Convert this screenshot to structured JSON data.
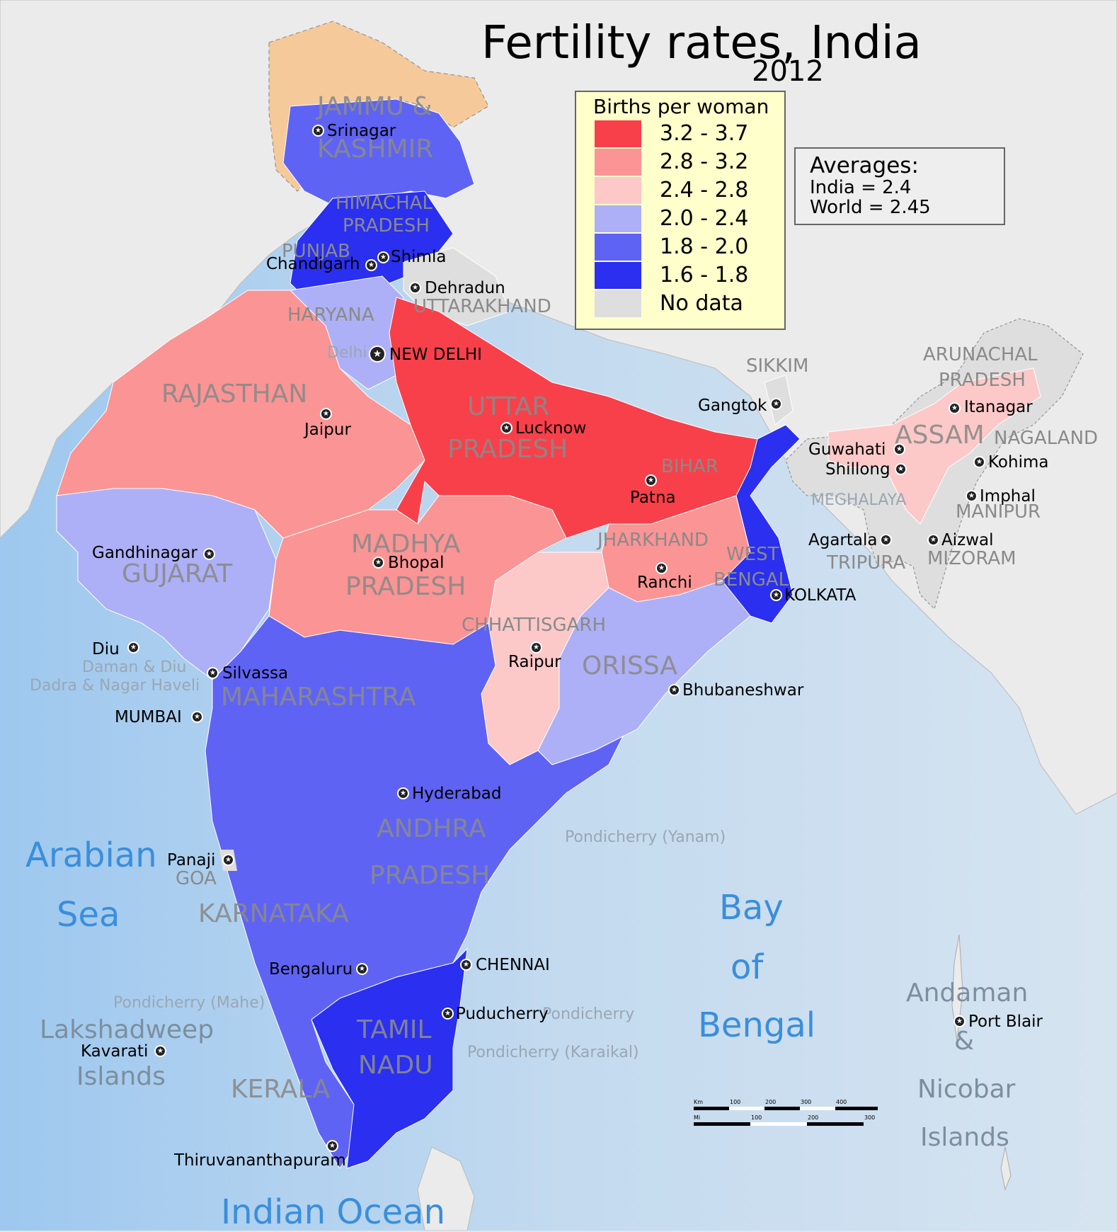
{
  "title": "Fertility rates, India",
  "subtitle": "2012",
  "legend": {
    "title": "Births per woman",
    "items": [
      {
        "label": "3.2 - 3.7",
        "color": "#f8404a"
      },
      {
        "label": "2.8 - 3.2",
        "color": "#fb9494"
      },
      {
        "label": "2.4 - 2.8",
        "color": "#fdc8c8"
      },
      {
        "label": "2.0 - 2.4",
        "color": "#adb0f6"
      },
      {
        "label": "1.8 - 2.0",
        "color": "#5f63f4"
      },
      {
        "label": "1.6 - 1.8",
        "color": "#2a2ff0"
      },
      {
        "label": "No data",
        "color": "#dedede"
      }
    ]
  },
  "averages": {
    "title": "Averages:",
    "india": "India = 2.4",
    "world": "World = 2.45"
  },
  "states": {
    "jammu": "JAMMU &",
    "kashmir": "KASHMIR",
    "himachal": "HIMACHAL",
    "himachal2": "PRADESH",
    "punjab": "PUNJAB",
    "haryana": "HARYANA",
    "uttarakhand": "UTTARAKHAND",
    "rajasthan": "RAJASTHAN",
    "uttar": "UTTAR",
    "uttar2": "PRADESH",
    "bihar": "BIHAR",
    "sikkim": "SIKKIM",
    "arunachal": "ARUNACHAL",
    "arunachal2": "PRADESH",
    "assam": "ASSAM",
    "nagaland": "NAGALAND",
    "meghalaya": "MEGHALAYA",
    "manipur": "MANIPUR",
    "tripura": "TRIPURA",
    "mizoram": "MIZORAM",
    "gujarat": "GUJARAT",
    "madhya": "MADHYA",
    "madhya2": "PRADESH",
    "jharkhand": "JHARKHAND",
    "westbengal": "WEST",
    "westbengal2": "BENGAL",
    "chhattisgarh": "CHHATTISGARH",
    "orissa": "ORISSA",
    "maharashtra": "MAHARASHTRA",
    "andhra": "ANDHRA",
    "andhra2": "PRADESH",
    "goa": "GOA",
    "karnataka": "KARNATAKA",
    "tamil": "TAMIL",
    "tamil2": "NADU",
    "kerala": "KERALA"
  },
  "union_territories": {
    "delhi": "Delhi",
    "daman": "Daman & Diu",
    "dadra": "Dadra & Nagar Haveli",
    "yanam": "Pondicherry (Yanam)",
    "mahe": "Pondicherry (Mahe)",
    "pondicherry": "Pondicherry",
    "karaikal": "Pondicherry (Karaikal)"
  },
  "cities": {
    "srinagar": "Srinagar",
    "shimla": "Shimla",
    "chandigarh": "Chandigarh",
    "dehradun": "Dehradun",
    "newdelhi": "NEW DELHI",
    "jaipur": "Jaipur",
    "lucknow": "Lucknow",
    "patna": "Patna",
    "gangtok": "Gangtok",
    "itanagar": "Itanagar",
    "guwahati": "Guwahati",
    "shillong": "Shillong",
    "kohima": "Kohima",
    "imphal": "Imphal",
    "agartala": "Agartala",
    "aizwal": "Aizwal",
    "gandhinagar": "Gandhinagar",
    "bhopal": "Bhopal",
    "ranchi": "Ranchi",
    "kolkata": "KOLKATA",
    "diu": "Diu",
    "silvassa": "Silvassa",
    "raipur": "Raipur",
    "bhubaneshwar": "Bhubaneshwar",
    "mumbai": "MUMBAI",
    "hyderabad": "Hyderabad",
    "panaji": "Panaji",
    "chennai": "CHENNAI",
    "bengaluru": "Bengaluru",
    "puducherry": "Puducherry",
    "kavarati": "Kavarati",
    "thiruvananthapuram": "Thiruvananthapuram",
    "portblair": "Port Blair"
  },
  "water": {
    "arabian": "Arabian",
    "sea": "Sea",
    "bay": "Bay",
    "of": "of",
    "bengal": "Bengal",
    "indian_ocean": "Indian Ocean"
  },
  "islands": {
    "lakshadweep": "Lakshadweep",
    "lak_islands": "Islands",
    "andaman": "Andaman",
    "amp": "&",
    "nicobar": "Nicobar",
    "nic_islands": "Islands"
  },
  "scale": {
    "km_label": "Km",
    "mi_label": "Mi",
    "km_ticks": [
      "100",
      "200",
      "300",
      "400"
    ],
    "mi_ticks": [
      "100",
      "200",
      "300"
    ]
  }
}
